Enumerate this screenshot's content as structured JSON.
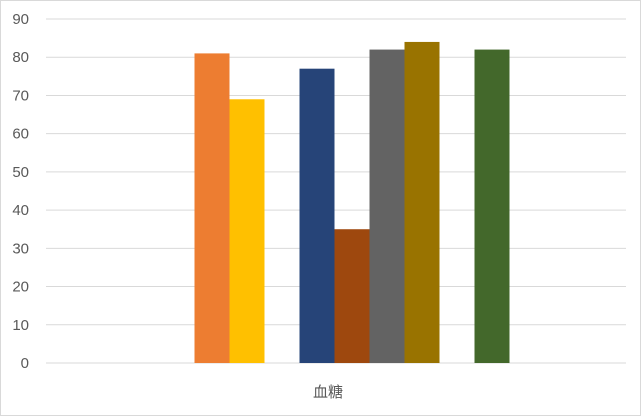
{
  "chart_data": {
    "type": "bar",
    "categories": [
      "血糖"
    ],
    "series": [
      {
        "values": [
          81
        ],
        "color": "#ED7D31"
      },
      {
        "values": [
          69
        ],
        "color": "#FFC000"
      },
      {
        "values": [
          null
        ],
        "color": "#5B9BD5"
      },
      {
        "values": [
          77
        ],
        "color": "#264478"
      },
      {
        "values": [
          35
        ],
        "color": "#9E480E"
      },
      {
        "values": [
          82
        ],
        "color": "#636363"
      },
      {
        "values": [
          84
        ],
        "color": "#997300"
      },
      {
        "values": [
          null
        ],
        "color": "#255E91"
      },
      {
        "values": [
          82
        ],
        "color": "#43682B"
      }
    ],
    "yticks": [
      "0",
      "10",
      "20",
      "30",
      "40",
      "50",
      "60",
      "70",
      "80",
      "90"
    ],
    "ylim": [
      0,
      90
    ],
    "grid": true,
    "legend": "none",
    "colors": {
      "gridline": "#d9d9d9",
      "axis_text": "#595959",
      "border": "#d9d9d9"
    }
  }
}
